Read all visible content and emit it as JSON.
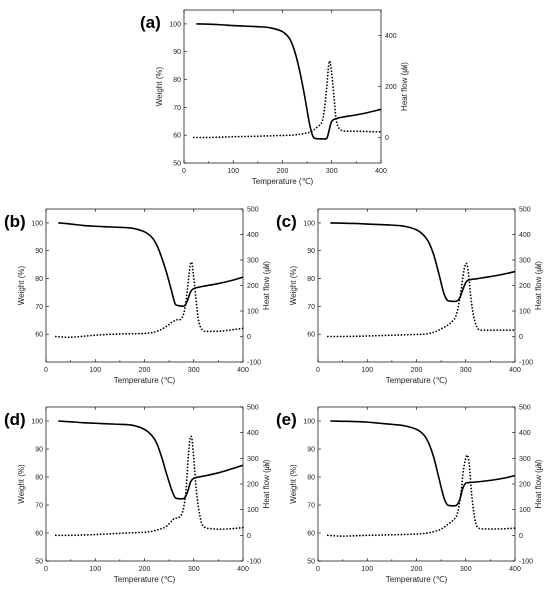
{
  "chart_data": [
    {
      "id": "a",
      "type": "line",
      "panel_label": "(a)",
      "xlabel": "Temperature (℃)",
      "ylabel": "Weight (%)",
      "y2label": "Heat flow (㎼)",
      "xlim": [
        0,
        400
      ],
      "ylim": [
        50,
        105
      ],
      "y2lim": [
        -100,
        500
      ],
      "xticks": [
        0,
        100,
        200,
        300,
        400
      ],
      "yticks": [
        50,
        60,
        70,
        80,
        90,
        100
      ],
      "y2ticks": [
        0,
        200,
        400
      ],
      "grid": false,
      "series": [
        {
          "axis": "left",
          "style": "solid",
          "x": [
            25,
            50,
            75,
            100,
            125,
            150,
            175,
            200,
            215,
            225,
            235,
            245,
            255,
            262,
            268,
            275,
            282,
            290,
            295,
            300,
            310,
            325,
            350,
            375,
            400
          ],
          "y": [
            100,
            99.9,
            99.7,
            99.4,
            99.2,
            99.0,
            98.6,
            97.2,
            94.5,
            90.0,
            83.0,
            74.0,
            64.0,
            59.5,
            58.8,
            58.7,
            58.7,
            58.9,
            62.0,
            65.0,
            66.0,
            66.6,
            67.3,
            68.2,
            69.3
          ]
        },
        {
          "axis": "right",
          "style": "dotted",
          "x": [
            20,
            50,
            100,
            150,
            200,
            225,
            250,
            260,
            270,
            280,
            285,
            290,
            293,
            296,
            300,
            305,
            310,
            320,
            340,
            360,
            400
          ],
          "y": [
            0,
            0,
            3,
            5,
            8,
            10,
            18,
            25,
            40,
            60,
            110,
            200,
            270,
            300,
            250,
            150,
            60,
            28,
            25,
            24,
            22
          ]
        }
      ]
    },
    {
      "id": "b",
      "type": "line",
      "panel_label": "(b)",
      "xlabel": "Temperature (℃)",
      "ylabel": "Weight (%)",
      "y2label": "Heat flow (㎼)",
      "xlim": [
        0,
        400
      ],
      "ylim": [
        50,
        105
      ],
      "y2lim": [
        -100,
        500
      ],
      "xticks": [
        0,
        100,
        200,
        300,
        400
      ],
      "yticks": [
        60,
        70,
        80,
        90,
        100
      ],
      "y2ticks": [
        -100,
        0,
        100,
        200,
        300,
        400,
        500
      ],
      "grid": false,
      "series": [
        {
          "axis": "left",
          "style": "solid",
          "x": [
            25,
            50,
            75,
            100,
            125,
            150,
            175,
            200,
            215,
            225,
            235,
            245,
            255,
            262,
            268,
            275,
            282,
            288,
            293,
            298,
            305,
            325,
            350,
            375,
            400
          ],
          "y": [
            100,
            99.6,
            99.1,
            98.8,
            98.6,
            98.4,
            98.1,
            96.8,
            94.8,
            92.0,
            87.5,
            82.0,
            75.5,
            71.0,
            70.3,
            70.1,
            70.3,
            72.5,
            75.0,
            76.2,
            76.7,
            77.4,
            78.2,
            79.2,
            80.5
          ]
        },
        {
          "axis": "right",
          "style": "dotted",
          "x": [
            20,
            50,
            100,
            150,
            200,
            225,
            245,
            255,
            265,
            275,
            282,
            288,
            292,
            296,
            300,
            305,
            310,
            318,
            330,
            360,
            400
          ],
          "y": [
            0,
            -3,
            5,
            10,
            12,
            20,
            40,
            55,
            65,
            70,
            110,
            200,
            270,
            290,
            230,
            140,
            60,
            25,
            20,
            22,
            32
          ]
        }
      ]
    },
    {
      "id": "c",
      "type": "line",
      "panel_label": "(c)",
      "xlabel": "Temperature (℃)",
      "ylabel": "Weight (%)",
      "y2label": "Heat flow (㎼)",
      "xlim": [
        0,
        400
      ],
      "ylim": [
        50,
        105
      ],
      "y2lim": [
        -100,
        500
      ],
      "xticks": [
        0,
        100,
        200,
        300,
        400
      ],
      "yticks": [
        60,
        70,
        80,
        90,
        100
      ],
      "y2ticks": [
        -100,
        0,
        100,
        200,
        300,
        400,
        500
      ],
      "grid": false,
      "series": [
        {
          "axis": "left",
          "style": "solid",
          "x": [
            25,
            50,
            75,
            100,
            125,
            150,
            175,
            200,
            215,
            225,
            235,
            245,
            255,
            262,
            268,
            275,
            282,
            288,
            294,
            300,
            306,
            325,
            350,
            375,
            400
          ],
          "y": [
            100,
            99.9,
            99.8,
            99.6,
            99.4,
            99.2,
            98.8,
            97.5,
            95.5,
            93.0,
            88.5,
            82.0,
            75.0,
            72.3,
            71.9,
            71.8,
            71.9,
            73.0,
            76.0,
            78.5,
            79.5,
            80.0,
            80.7,
            81.5,
            82.5
          ]
        },
        {
          "axis": "right",
          "style": "dotted",
          "x": [
            20,
            50,
            100,
            150,
            200,
            220,
            240,
            250,
            260,
            270,
            280,
            288,
            294,
            298,
            302,
            306,
            310,
            316,
            325,
            340,
            370,
            400
          ],
          "y": [
            0,
            0,
            2,
            5,
            8,
            10,
            20,
            30,
            40,
            55,
            80,
            150,
            230,
            275,
            285,
            240,
            160,
            80,
            30,
            25,
            25,
            25
          ]
        }
      ]
    },
    {
      "id": "d",
      "type": "line",
      "panel_label": "(d)",
      "xlabel": "Temperature (℃)",
      "ylabel": "Weight (%)",
      "y2label": "Heat flow (㎼)",
      "xlim": [
        0,
        400
      ],
      "ylim": [
        50,
        105
      ],
      "y2lim": [
        -100,
        500
      ],
      "xticks": [
        0,
        100,
        200,
        300,
        400
      ],
      "yticks": [
        50,
        60,
        70,
        80,
        90,
        100
      ],
      "y2ticks": [
        -100,
        0,
        100,
        200,
        300,
        400,
        500
      ],
      "grid": false,
      "series": [
        {
          "axis": "left",
          "style": "solid",
          "x": [
            25,
            50,
            75,
            100,
            125,
            150,
            175,
            200,
            215,
            225,
            235,
            245,
            255,
            262,
            268,
            275,
            282,
            288,
            293,
            298,
            305,
            325,
            350,
            375,
            400
          ],
          "y": [
            100,
            99.7,
            99.4,
            99.2,
            99.0,
            98.8,
            98.5,
            97.0,
            94.8,
            92.0,
            87.0,
            81.0,
            75.5,
            72.7,
            72.3,
            72.2,
            72.6,
            75.0,
            78.0,
            79.3,
            79.8,
            80.5,
            81.5,
            82.8,
            84.2
          ]
        },
        {
          "axis": "right",
          "style": "dotted",
          "x": [
            20,
            50,
            100,
            150,
            200,
            220,
            240,
            250,
            260,
            270,
            278,
            284,
            288,
            292,
            296,
            300,
            305,
            312,
            320,
            340,
            370,
            400
          ],
          "y": [
            0,
            0,
            3,
            8,
            12,
            18,
            30,
            45,
            65,
            70,
            95,
            170,
            280,
            370,
            380,
            300,
            180,
            80,
            35,
            25,
            25,
            30
          ]
        }
      ]
    },
    {
      "id": "e",
      "type": "line",
      "panel_label": "(e)",
      "xlabel": "Temperature (℃)",
      "ylabel": "Weight (%)",
      "y2label": "Heat flow (㎼)",
      "xlim": [
        0,
        400
      ],
      "ylim": [
        50,
        105
      ],
      "y2lim": [
        -100,
        500
      ],
      "xticks": [
        0,
        100,
        200,
        300,
        400
      ],
      "yticks": [
        50,
        60,
        70,
        80,
        90,
        100
      ],
      "y2ticks": [
        -100,
        0,
        100,
        200,
        300,
        400,
        500
      ],
      "grid": false,
      "series": [
        {
          "axis": "left",
          "style": "solid",
          "x": [
            25,
            50,
            75,
            100,
            125,
            150,
            175,
            200,
            215,
            225,
            235,
            245,
            255,
            262,
            268,
            275,
            282,
            288,
            294,
            300,
            306,
            325,
            350,
            375,
            400
          ],
          "y": [
            100,
            99.9,
            99.8,
            99.6,
            99.2,
            98.8,
            98.3,
            97.0,
            95.0,
            92.0,
            87.0,
            80.0,
            73.0,
            70.2,
            69.8,
            69.7,
            70.0,
            72.0,
            76.0,
            77.8,
            78.0,
            78.3,
            78.8,
            79.5,
            80.5
          ]
        },
        {
          "axis": "right",
          "style": "dotted",
          "x": [
            20,
            50,
            100,
            150,
            200,
            225,
            245,
            255,
            265,
            275,
            283,
            290,
            295,
            300,
            304,
            308,
            312,
            318,
            325,
            345,
            370,
            400
          ],
          "y": [
            0,
            -3,
            0,
            2,
            5,
            10,
            20,
            30,
            45,
            60,
            85,
            160,
            250,
            300,
            310,
            260,
            160,
            70,
            30,
            25,
            25,
            28
          ]
        }
      ]
    }
  ]
}
